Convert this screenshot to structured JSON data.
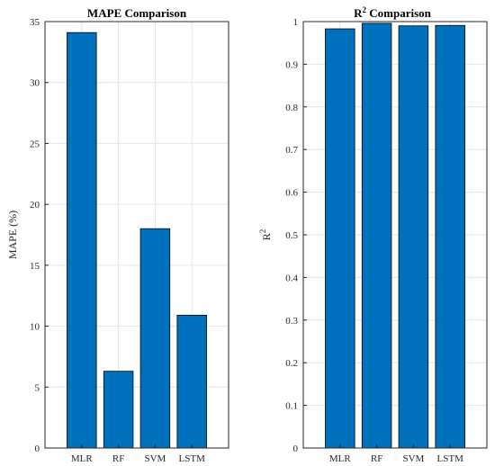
{
  "chart_data": [
    {
      "type": "bar",
      "title": "MAPE Comparison",
      "title_sup": "",
      "xlabel": "",
      "ylabel": "MAPE (%)",
      "ylabel_sup": "",
      "categories": [
        "MLR",
        "RF",
        "SVM",
        "LSTM"
      ],
      "values": [
        34.1,
        6.3,
        18.0,
        10.9
      ],
      "ylim": [
        0,
        35
      ],
      "yticks": [
        0,
        5,
        10,
        15,
        20,
        25,
        30,
        35
      ],
      "ytick_labels": [
        "0",
        "5",
        "10",
        "15",
        "20",
        "25",
        "30",
        "35"
      ],
      "grid": true,
      "bar_color": "#0072BD"
    },
    {
      "type": "bar",
      "title": "R",
      "title_sup": "2",
      "title_suffix": " Comparison",
      "xlabel": "",
      "ylabel": "R",
      "ylabel_sup": "2",
      "categories": [
        "MLR",
        "RF",
        "SVM",
        "LSTM"
      ],
      "values": [
        0.983,
        0.996,
        0.99,
        0.991
      ],
      "ylim": [
        0,
        1
      ],
      "yticks": [
        0,
        0.1,
        0.2,
        0.3,
        0.4,
        0.5,
        0.6,
        0.7,
        0.8,
        0.9,
        1
      ],
      "ytick_labels": [
        "0",
        "0.1",
        "0.2",
        "0.3",
        "0.4",
        "0.5",
        "0.6",
        "0.7",
        "0.8",
        "0.9",
        "1"
      ],
      "grid": true,
      "bar_color": "#0072BD"
    }
  ]
}
